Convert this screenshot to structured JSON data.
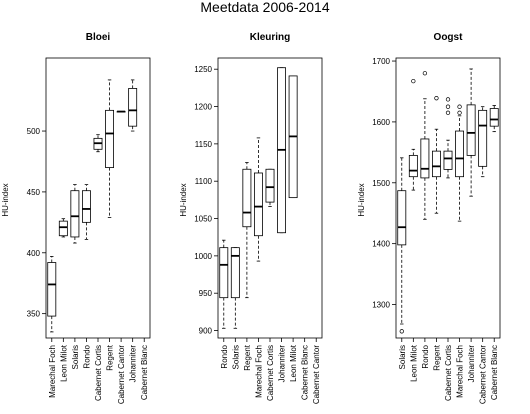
{
  "figure": {
    "title": "Meetdata 2006-2014"
  },
  "chart_data": [
    {
      "type": "boxplot",
      "title": "Bloei",
      "xlabel": "",
      "ylabel": "HU-index",
      "ylim": [
        330,
        560
      ],
      "yticks": [
        350,
        400,
        450,
        500
      ],
      "grid": false,
      "categories": [
        "Marechal Foch",
        "Leon Milot",
        "Solaris",
        "Rondo",
        "Cabernet Cortis",
        "Regent",
        "Cabernet Cantor",
        "Johanniter",
        "Cabernet Blanc"
      ],
      "boxes": [
        {
          "whislo": 335,
          "q1": 348,
          "med": 374,
          "q3": 392,
          "whishi": 397,
          "fliers": []
        },
        {
          "whislo": 413,
          "q1": 414,
          "med": 421,
          "q3": 426,
          "whishi": 428,
          "fliers": []
        },
        {
          "whislo": 408,
          "q1": 413,
          "med": 430,
          "q3": 451,
          "whishi": 456,
          "fliers": []
        },
        {
          "whislo": 411,
          "q1": 425,
          "med": 436,
          "q3": 451,
          "whishi": 456,
          "fliers": []
        },
        {
          "whislo": 483,
          "q1": 485,
          "med": 490,
          "q3": 494,
          "whishi": 497,
          "fliers": []
        },
        {
          "whislo": 429,
          "q1": 470,
          "med": 498,
          "q3": 517,
          "whishi": 542,
          "fliers": []
        },
        {
          "whislo": 516,
          "q1": 516,
          "med": 516,
          "q3": 516,
          "whishi": 516,
          "fliers": []
        },
        {
          "whislo": 500,
          "q1": 504,
          "med": 517,
          "q3": 535,
          "whishi": 542,
          "fliers": []
        },
        {
          "whislo": null,
          "q1": null,
          "med": null,
          "q3": null,
          "whishi": null,
          "fliers": []
        }
      ]
    },
    {
      "type": "boxplot",
      "title": "Kleuring",
      "xlabel": "",
      "ylabel": "HU-index",
      "ylim": [
        890,
        1265
      ],
      "yticks": [
        900,
        950,
        1000,
        1050,
        1100,
        1150,
        1200,
        1250
      ],
      "grid": false,
      "categories": [
        "Rondo",
        "Solaris",
        "Regent",
        "Marechal Foch",
        "Cabernet Cortis",
        "Johanniter",
        "Leon Milot",
        "Cabernet Blanc",
        "Cabernet Cantor"
      ],
      "boxes": [
        {
          "whislo": 903,
          "q1": 944,
          "med": 988,
          "q3": 1011,
          "whishi": 1021,
          "fliers": []
        },
        {
          "whislo": 903,
          "q1": 944,
          "med": 1000,
          "q3": 1011,
          "whishi": 1011,
          "fliers": []
        },
        {
          "whislo": 944,
          "q1": 1039,
          "med": 1058,
          "q3": 1116,
          "whishi": 1125,
          "fliers": []
        },
        {
          "whislo": 993,
          "q1": 1027,
          "med": 1066,
          "q3": 1111,
          "whishi": 1158,
          "fliers": []
        },
        {
          "whislo": 1066,
          "q1": 1072,
          "med": 1092,
          "q3": 1116,
          "whishi": 1116,
          "fliers": []
        },
        {
          "whislo": 1031,
          "q1": 1031,
          "med": 1142,
          "q3": 1252,
          "whishi": 1252,
          "fliers": []
        },
        {
          "whislo": 1078,
          "q1": 1078,
          "med": 1160,
          "q3": 1241,
          "whishi": 1241,
          "fliers": []
        },
        {
          "whislo": null,
          "q1": null,
          "med": null,
          "q3": null,
          "whishi": null,
          "fliers": []
        },
        {
          "whislo": null,
          "q1": null,
          "med": null,
          "q3": null,
          "whishi": null,
          "fliers": []
        }
      ]
    },
    {
      "type": "boxplot",
      "title": "Oogst",
      "xlabel": "",
      "ylabel": "HU-index",
      "ylim": [
        1245,
        1705
      ],
      "yticks": [
        1300,
        1400,
        1500,
        1600,
        1700
      ],
      "grid": false,
      "categories": [
        "Solaris",
        "Leon Milot",
        "Rondo",
        "Regent",
        "Cabernet Cortis",
        "Marechal Foch",
        "Johanniter",
        "Cabernet Cantor",
        "Cabernet Blanc"
      ],
      "boxes": [
        {
          "whislo": 1268,
          "q1": 1398,
          "med": 1427,
          "q3": 1487,
          "whishi": 1541,
          "fliers": [
            1256
          ]
        },
        {
          "whislo": 1488,
          "q1": 1510,
          "med": 1520,
          "q3": 1545,
          "whishi": 1555,
          "fliers": [
            1667
          ]
        },
        {
          "whislo": 1440,
          "q1": 1508,
          "med": 1523,
          "q3": 1572,
          "whishi": 1638,
          "fliers": [
            1680
          ]
        },
        {
          "whislo": 1450,
          "q1": 1510,
          "med": 1527,
          "q3": 1552,
          "whishi": 1588,
          "fliers": [
            1639
          ]
        },
        {
          "whislo": 1508,
          "q1": 1522,
          "med": 1540,
          "q3": 1552,
          "whishi": 1570,
          "fliers": [
            1615,
            1625,
            1637
          ]
        },
        {
          "whislo": 1437,
          "q1": 1510,
          "med": 1540,
          "q3": 1585,
          "whishi": 1610,
          "fliers": [
            1615,
            1625
          ]
        },
        {
          "whislo": 1478,
          "q1": 1545,
          "med": 1582,
          "q3": 1628,
          "whishi": 1687,
          "fliers": []
        },
        {
          "whislo": 1510,
          "q1": 1527,
          "med": 1594,
          "q3": 1619,
          "whishi": 1625,
          "fliers": []
        },
        {
          "whislo": 1584,
          "q1": 1593,
          "med": 1604,
          "q3": 1622,
          "whishi": 1627,
          "fliers": []
        }
      ]
    }
  ]
}
